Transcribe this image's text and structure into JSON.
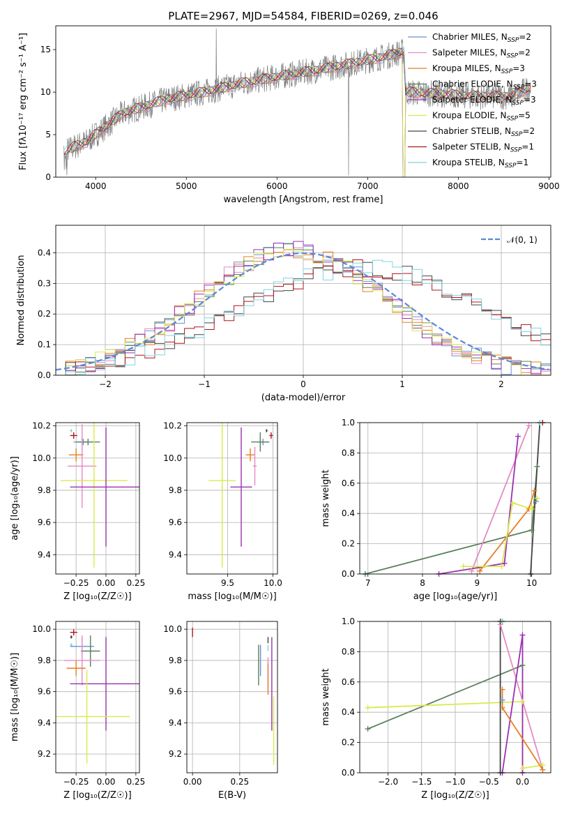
{
  "title": "PLATE=2967, MJD=54584, FIBERID=0269, z=0.046",
  "colors": {
    "chabrier_miles": "#6a8fd1",
    "salpeter_miles": "#e58ac4",
    "kroupa_miles": "#e67e22",
    "chabrier_elodie": "#5a7f5a",
    "salpeter_elodie": "#9b30b0",
    "kroupa_elodie": "#d9ea4a",
    "chabrier_stelib": "#444444",
    "salpeter_stelib": "#b0141a",
    "kroupa_stelib": "#7fd4df",
    "data": "#808080",
    "normal": "#5b87d6",
    "grid": "#b0b0b0"
  },
  "chart_data": [
    {
      "id": "spectrum",
      "type": "line",
      "title": "PLATE=2967, MJD=54584, FIBERID=0269, z=0.046",
      "xlabel": "wavelength [Angstrom, rest frame]",
      "ylabel": "Flux [fλ10⁻¹⁷ erg cm⁻² s⁻¹ A⁻¹]",
      "xlim": [
        3560,
        9020
      ],
      "ylim": [
        0,
        17.8
      ],
      "xticks": [
        "4000",
        "5000",
        "6000",
        "7000",
        "8000",
        "9000"
      ],
      "yticks": [
        "0",
        "5",
        "10",
        "15"
      ],
      "legend_position": "upper-right",
      "legend": [
        {
          "key": "chabrier_miles",
          "text": "Chabrier MILES, N",
          "sub": "SSP",
          "tail": "=2"
        },
        {
          "key": "salpeter_miles",
          "text": "Salpeter MILES, N",
          "sub": "SSP",
          "tail": "=2"
        },
        {
          "key": "kroupa_miles",
          "text": "Kroupa MILES, N",
          "sub": "SSP",
          "tail": "=3"
        },
        {
          "key": "chabrier_elodie",
          "text": "Chabrier ELODIE, N",
          "sub": "SSP",
          "tail": "=3"
        },
        {
          "key": "salpeter_elodie",
          "text": "Salpeter ELODIE, N",
          "sub": "SSP",
          "tail": "=3"
        },
        {
          "key": "kroupa_elodie",
          "text": "Kroupa ELODIE, N",
          "sub": "SSP",
          "tail": "=5"
        },
        {
          "key": "chabrier_stelib",
          "text": "Chabrier STELIB, N",
          "sub": "SSP",
          "tail": "=2"
        },
        {
          "key": "salpeter_stelib",
          "text": "Salpeter STELIB, N",
          "sub": "SSP",
          "tail": "=1"
        },
        {
          "key": "kroupa_stelib",
          "text": "Kroupa STELIB, N",
          "sub": "SSP",
          "tail": "=1"
        }
      ],
      "continuum": {
        "x": [
          3650,
          3900,
          4300,
          4800,
          5200,
          5600,
          6000,
          6400,
          6800,
          7200,
          7400,
          7420,
          8200,
          8600,
          8800
        ],
        "y": [
          3.0,
          4.2,
          7.5,
          9.2,
          10.0,
          11.0,
          11.8,
          12.5,
          13.3,
          14.2,
          14.8,
          10.0,
          9.5,
          9.5,
          10.6
        ]
      }
    },
    {
      "id": "residuals",
      "type": "histogram",
      "xlabel": "(data-model)/error",
      "ylabel": "Normed distribution",
      "xlim": [
        -2.5,
        2.5
      ],
      "ylim": [
        0,
        0.49
      ],
      "xticks": [
        "−2",
        "−1",
        "0",
        "1",
        "2"
      ],
      "yticks": [
        "0.0",
        "0.1",
        "0.2",
        "0.3",
        "0.4"
      ],
      "legend_position": "upper-right",
      "legend": "𝒩(0, 1)",
      "centered_group": [
        "chabrier_miles",
        "salpeter_miles",
        "kroupa_miles",
        "chabrier_elodie",
        "salpeter_elodie",
        "kroupa_elodie"
      ],
      "shifted_group": [
        "chabrier_stelib",
        "salpeter_stelib",
        "kroupa_stelib"
      ],
      "centered_mean": -0.1,
      "centered_sigma": 0.95,
      "centered_peak": 0.41,
      "shifted_mean": 0.6,
      "shifted_sigma": 1.25,
      "shifted_peak": 0.35
    },
    {
      "id": "age_vs_Z",
      "type": "errorbar",
      "xlabel": "Z [log₁₀(Z/Z☉)]",
      "ylabel": "age  [log₁₀(age/yr)]",
      "xlim": [
        -0.42,
        0.28
      ],
      "ylim": [
        9.28,
        10.22
      ],
      "xticks": [
        "−0.25",
        "0.00",
        "0.25"
      ],
      "yticks": [
        "9.4",
        "9.6",
        "9.8",
        "10.0",
        "10.2"
      ],
      "points": [
        {
          "key": "kroupa_stelib",
          "x": -0.29,
          "y": 10.17,
          "xerr": 0.01,
          "yerr": 0.01
        },
        {
          "key": "salpeter_stelib",
          "x": -0.27,
          "y": 10.14,
          "xerr": 0.03,
          "yerr": 0.02
        },
        {
          "key": "chabrier_miles",
          "x": -0.19,
          "y": 10.1,
          "xerr": 0.08,
          "yerr": 0.02
        },
        {
          "key": "chabrier_elodie",
          "x": -0.15,
          "y": 10.1,
          "xerr": 0.1,
          "yerr": 0.02
        },
        {
          "key": "kroupa_miles",
          "x": -0.25,
          "y": 10.02,
          "xerr": 0.06,
          "yerr": 0.04
        },
        {
          "key": "salpeter_miles",
          "x": -0.2,
          "y": 9.95,
          "xerr": 0.12,
          "yerr": 0.26
        },
        {
          "key": "kroupa_elodie",
          "x": -0.1,
          "y": 9.86,
          "xerr": 0.28,
          "yerr": 0.54
        },
        {
          "key": "salpeter_elodie",
          "x": 0.0,
          "y": 9.82,
          "xerr": 0.3,
          "yerr": 0.37
        }
      ]
    },
    {
      "id": "age_vs_mass",
      "type": "errorbar",
      "xlabel": "mass [log₁₀(M/M☉)]",
      "ylabel": "",
      "xlim": [
        9.05,
        10.05
      ],
      "ylim": [
        9.28,
        10.22
      ],
      "xticks": [
        "9.5",
        "10.0"
      ],
      "yticks": [
        "9.4",
        "9.6",
        "9.8",
        "10.0",
        "10.2"
      ],
      "points": [
        {
          "key": "chabrier_stelib",
          "x": 9.93,
          "y": 10.17,
          "xerr": 0.01,
          "yerr": 0.01
        },
        {
          "key": "salpeter_stelib",
          "x": 9.98,
          "y": 10.14,
          "xerr": 0.02,
          "yerr": 0.02
        },
        {
          "key": "chabrier_miles",
          "x": 9.89,
          "y": 10.1,
          "xerr": 0.06,
          "yerr": 0.02
        },
        {
          "key": "chabrier_elodie",
          "x": 9.86,
          "y": 10.1,
          "xerr": 0.1,
          "yerr": 0.06
        },
        {
          "key": "kroupa_miles",
          "x": 9.75,
          "y": 10.02,
          "xerr": 0.05,
          "yerr": 0.04
        },
        {
          "key": "salpeter_miles",
          "x": 9.8,
          "y": 9.95,
          "xerr": 0.02,
          "yerr": 0.12
        },
        {
          "key": "kroupa_elodie",
          "x": 9.44,
          "y": 9.86,
          "xerr": 0.15,
          "yerr": 0.54
        },
        {
          "key": "salpeter_elodie",
          "x": 9.65,
          "y": 9.82,
          "xerr": 0.12,
          "yerr": 0.37
        }
      ]
    },
    {
      "id": "massweight_vs_age",
      "type": "line",
      "xlabel": "age  [log₁₀(age/yr)]",
      "ylabel": "mass weight",
      "xlim": [
        6.85,
        10.35
      ],
      "ylim": [
        0,
        1
      ],
      "xticks": [
        "7",
        "8",
        "9",
        "10"
      ],
      "yticks": [
        "0.0",
        "0.2",
        "0.4",
        "0.6",
        "0.8",
        "1.0"
      ],
      "series": [
        {
          "key": "chabrier_elodie",
          "x": [
            6.95,
            10.0,
            10.1
          ],
          "y": [
            0.0,
            0.29,
            0.71
          ]
        },
        {
          "key": "salpeter_miles",
          "x": [
            8.9,
            9.95
          ],
          "y": [
            0.02,
            0.98
          ]
        },
        {
          "key": "salpeter_elodie",
          "x": [
            8.3,
            9.5,
            9.75
          ],
          "y": [
            0.0,
            0.07,
            0.91
          ]
        },
        {
          "key": "kroupa_miles",
          "x": [
            9.05,
            9.95,
            10.05
          ],
          "y": [
            0.02,
            0.43,
            0.55
          ]
        },
        {
          "key": "kroupa_elodie",
          "x": [
            8.75,
            9.45,
            9.65,
            10.0,
            10.1
          ],
          "y": [
            0.05,
            0.05,
            0.47,
            0.43,
            0.5
          ]
        },
        {
          "key": "chabrier_miles",
          "x": [
            10.08
          ],
          "y": [
            0.48
          ]
        },
        {
          "key": "chabrier_stelib",
          "x": [
            9.98,
            10.15
          ],
          "y": [
            0.0,
            1.0
          ]
        },
        {
          "key": "salpeter_stelib",
          "x": [
            10.2
          ],
          "y": [
            1.0
          ]
        },
        {
          "key": "kroupa_stelib",
          "x": [
            10.15
          ],
          "y": [
            1.0
          ]
        }
      ]
    },
    {
      "id": "mass_vs_Z",
      "type": "errorbar",
      "xlabel": "Z [log₁₀(Z/Z☉)]",
      "ylabel": "mass [log₁₀(M/M☉)]",
      "xlim": [
        -0.42,
        0.28
      ],
      "ylim": [
        9.08,
        10.05
      ],
      "xticks": [
        "−0.25",
        "0.00",
        "0.25"
      ],
      "yticks": [
        "9.2",
        "9.4",
        "9.6",
        "9.8",
        "10.0"
      ],
      "points": [
        {
          "key": "salpeter_stelib",
          "x": -0.27,
          "y": 9.98,
          "xerr": 0.03,
          "yerr": 0.02
        },
        {
          "key": "chabrier_stelib",
          "x": -0.29,
          "y": 9.95,
          "xerr": 0.01,
          "yerr": 0.01
        },
        {
          "key": "kroupa_stelib",
          "x": -0.29,
          "y": 9.9,
          "xerr": 0.01,
          "yerr": 0.01
        },
        {
          "key": "chabrier_miles",
          "x": -0.2,
          "y": 9.89,
          "xerr": 0.1,
          "yerr": 0.05
        },
        {
          "key": "chabrier_elodie",
          "x": -0.13,
          "y": 9.86,
          "xerr": 0.08,
          "yerr": 0.1
        },
        {
          "key": "salpeter_miles",
          "x": -0.2,
          "y": 9.8,
          "xerr": 0.15,
          "yerr": 0.16
        },
        {
          "key": "kroupa_miles",
          "x": -0.25,
          "y": 9.75,
          "xerr": 0.08,
          "yerr": 0.05
        },
        {
          "key": "salpeter_elodie",
          "x": 0.0,
          "y": 9.65,
          "xerr": 0.3,
          "yerr": 0.3
        },
        {
          "key": "kroupa_elodie",
          "x": -0.16,
          "y": 9.44,
          "xerr": 0.36,
          "yerr": 0.3
        }
      ]
    },
    {
      "id": "mass_vs_ebv",
      "type": "errorbar",
      "xlabel": "E(B-V)",
      "ylabel": "",
      "xlim": [
        -0.03,
        0.45
      ],
      "ylim": [
        9.08,
        10.05
      ],
      "xticks": [
        "0.00",
        "0.25"
      ],
      "yticks": [
        "9.2",
        "9.4",
        "9.6",
        "9.8",
        "10.0"
      ],
      "points": [
        {
          "key": "salpeter_stelib",
          "x": 0.0,
          "y": 9.98,
          "xerr": 0.002,
          "yerr": 0.03
        },
        {
          "key": "chabrier_stelib",
          "x": 0.4,
          "y": 9.93,
          "xerr": 0.002,
          "yerr": 0.02
        },
        {
          "key": "kroupa_stelib",
          "x": 0.4,
          "y": 9.88,
          "xerr": 0.002,
          "yerr": 0.02
        },
        {
          "key": "chabrier_miles",
          "x": 0.36,
          "y": 9.8,
          "xerr": 0.002,
          "yerr": 0.1
        },
        {
          "key": "chabrier_elodie",
          "x": 0.35,
          "y": 9.77,
          "xerr": 0.002,
          "yerr": 0.13
        },
        {
          "key": "salpeter_miles",
          "x": 0.4,
          "y": 9.72,
          "xerr": 0.002,
          "yerr": 0.1
        },
        {
          "key": "kroupa_miles",
          "x": 0.4,
          "y": 9.68,
          "xerr": 0.002,
          "yerr": 0.1
        },
        {
          "key": "salpeter_elodie",
          "x": 0.42,
          "y": 9.65,
          "xerr": 0.002,
          "yerr": 0.3
        },
        {
          "key": "kroupa_elodie",
          "x": 0.43,
          "y": 9.35,
          "xerr": 0.002,
          "yerr": 0.22
        }
      ]
    },
    {
      "id": "massweight_vs_Z",
      "type": "line",
      "xlabel": "Z [log₁₀(Z/Z☉)]",
      "ylabel": "mass weight",
      "xlim": [
        -2.42,
        0.42
      ],
      "ylim": [
        0,
        1
      ],
      "xticks": [
        "−2.0",
        "−1.5",
        "−1.0",
        "−0.5",
        "0.0"
      ],
      "yticks": [
        "0.0",
        "0.2",
        "0.4",
        "0.6",
        "0.8",
        "1.0"
      ],
      "series": [
        {
          "key": "chabrier_elodie",
          "x": [
            -2.3,
            0.0
          ],
          "y": [
            0.29,
            0.71
          ]
        },
        {
          "key": "kroupa_elodie",
          "x": [
            -2.3,
            0.0,
            0.0,
            0.3
          ],
          "y": [
            0.43,
            0.47,
            0.03,
            0.05
          ]
        },
        {
          "key": "salpeter_miles",
          "x": [
            -0.33,
            0.3
          ],
          "y": [
            0.98,
            0.02
          ]
        },
        {
          "key": "salpeter_elodie",
          "x": [
            -0.3,
            0.0,
            0.0
          ],
          "y": [
            0.0,
            0.91,
            0.0
          ]
        },
        {
          "key": "kroupa_miles",
          "x": [
            -0.3,
            -0.3,
            0.3
          ],
          "y": [
            0.55,
            0.43,
            0.02
          ]
        },
        {
          "key": "chabrier_stelib",
          "x": [
            -0.33,
            -0.33
          ],
          "y": [
            0.0,
            1.0
          ]
        },
        {
          "key": "chabrier_miles",
          "x": [
            -0.3
          ],
          "y": [
            0.48
          ]
        },
        {
          "key": "salpeter_stelib",
          "x": [
            -0.3
          ],
          "y": [
            1.0
          ]
        },
        {
          "key": "kroupa_stelib",
          "x": [
            -0.3
          ],
          "y": [
            1.0
          ]
        }
      ]
    }
  ]
}
